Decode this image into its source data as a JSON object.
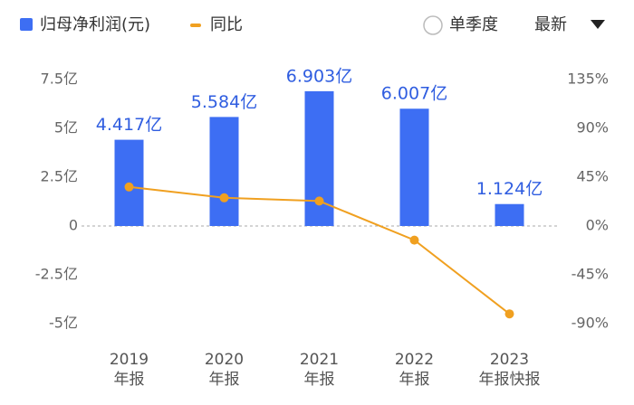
{
  "controls": {
    "period_option": "单季度",
    "sort": "最新"
  },
  "chart_data": {
    "type": "bar-line",
    "categories": [
      "2019\n年报",
      "2020\n年报",
      "2021\n年报",
      "2022\n年报",
      "2023\n年报快报"
    ],
    "series": [
      {
        "name": "归母净利润(元)",
        "color": "#3d6ef3",
        "type": "bar",
        "values": [
          4.417,
          5.584,
          6.903,
          6.007,
          1.124
        ],
        "value_labels": [
          "4.417亿",
          "5.584亿",
          "6.903亿",
          "6.007亿",
          "1.124亿"
        ]
      },
      {
        "name": "同比",
        "color": "#f0a020",
        "type": "line",
        "axis": "y2",
        "values": [
          36,
          26,
          23,
          -13,
          -81
        ]
      }
    ],
    "ylim": [
      -5,
      7.5
    ],
    "yticks": [
      {
        "value": 7.5,
        "label": "7.5亿"
      },
      {
        "value": 5,
        "label": "5亿"
      },
      {
        "value": 2.5,
        "label": "2.5亿"
      },
      0,
      {
        "value": -2.5,
        "label": "-2.5亿"
      },
      {
        "value": -5,
        "label": "-5亿"
      }
    ],
    "y2lim": [
      -90,
      135
    ],
    "y2ticks": [
      {
        "value": 135,
        "label": "135%"
      },
      {
        "value": 90,
        "label": "90%"
      },
      {
        "value": 45,
        "label": "45%"
      },
      {
        "value": 0,
        "label": "0%"
      },
      {
        "value": -45,
        "label": "-45%"
      },
      {
        "value": -90,
        "label": "-90%"
      }
    ],
    "grid": false
  }
}
